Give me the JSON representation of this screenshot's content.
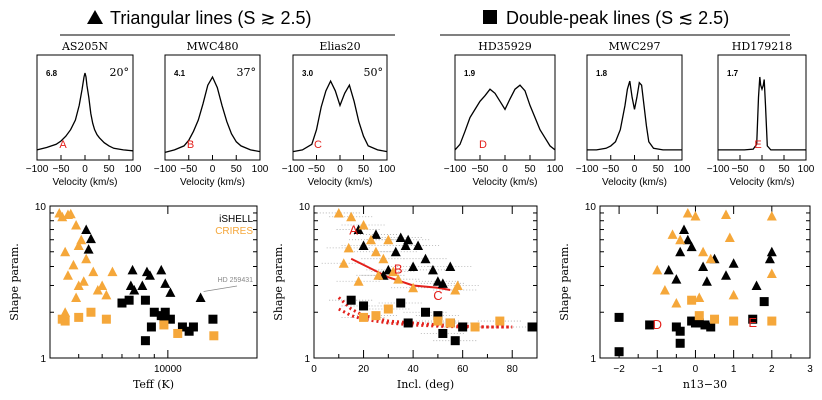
{
  "headers": {
    "left": "Triangular lines (S ≳ 2.5)",
    "right": "Double-peak lines (S ≲ 2.5)"
  },
  "colors": {
    "ishell": "#000000",
    "crires": "#f5a73a",
    "red": "#e3201b",
    "grey": "#888888"
  },
  "chart_data": [
    {
      "type": "line",
      "title": "AS205N",
      "shape_value": "6.8",
      "inclination_label": "20°",
      "letter": "A",
      "xlabel": "Velocity (km/s)",
      "xlim": [
        -100,
        100
      ],
      "xticks": [
        "−100",
        "−50",
        "0",
        "50",
        "100"
      ],
      "x": [
        -100,
        -80,
        -60,
        -50,
        -40,
        -30,
        -20,
        -12,
        -6,
        -2,
        0,
        2,
        4,
        8,
        12,
        16,
        20,
        25,
        30,
        40,
        50,
        60,
        80,
        100
      ],
      "y": [
        0.05,
        0.08,
        0.12,
        0.16,
        0.22,
        0.3,
        0.42,
        0.6,
        0.8,
        0.95,
        1.0,
        0.95,
        0.85,
        0.7,
        0.5,
        0.38,
        0.3,
        0.24,
        0.2,
        0.14,
        0.1,
        0.07,
        0.05,
        0.04
      ]
    },
    {
      "type": "line",
      "title": "MWC480",
      "shape_value": "4.1",
      "inclination_label": "37°",
      "letter": "B",
      "xlabel": "Velocity (km/s)",
      "xlim": [
        -100,
        100
      ],
      "xticks": [
        "−100",
        "−50",
        "0",
        "50",
        "100"
      ],
      "x": [
        -100,
        -80,
        -60,
        -50,
        -40,
        -30,
        -20,
        -10,
        0,
        10,
        20,
        30,
        40,
        50,
        60,
        80,
        100
      ],
      "y": [
        0.02,
        0.05,
        0.1,
        0.17,
        0.28,
        0.42,
        0.62,
        0.85,
        0.95,
        0.82,
        0.6,
        0.4,
        0.25,
        0.15,
        0.1,
        0.05,
        0.03
      ]
    },
    {
      "type": "line",
      "title": "Elias20",
      "shape_value": "3.0",
      "inclination_label": "50°",
      "letter": "C",
      "xlabel": "Velocity (km/s)",
      "xlim": [
        -100,
        100
      ],
      "xticks": [
        "−100",
        "−50",
        "0",
        "50",
        "100"
      ],
      "x": [
        -100,
        -80,
        -60,
        -50,
        -40,
        -30,
        -20,
        -10,
        0,
        10,
        20,
        30,
        40,
        50,
        60,
        80,
        100
      ],
      "y": [
        0.03,
        0.05,
        0.12,
        0.3,
        0.58,
        0.78,
        0.9,
        0.78,
        0.6,
        0.75,
        0.85,
        0.65,
        0.4,
        0.22,
        0.1,
        0.05,
        0.03
      ]
    },
    {
      "type": "line",
      "title": "HD35929",
      "shape_value": "1.9",
      "letter": "D",
      "xlabel": "Velocity (km/s)",
      "xlim": [
        -100,
        100
      ],
      "xticks": [
        "−100",
        "−50",
        "0",
        "50",
        "100"
      ],
      "x": [
        -100,
        -90,
        -80,
        -70,
        -60,
        -50,
        -40,
        -30,
        -20,
        -10,
        0,
        10,
        20,
        30,
        40,
        50,
        60,
        70,
        80,
        90,
        100
      ],
      "y": [
        0.05,
        0.12,
        0.28,
        0.45,
        0.55,
        0.65,
        0.72,
        0.8,
        0.75,
        0.65,
        0.55,
        0.68,
        0.8,
        0.85,
        0.78,
        0.6,
        0.45,
        0.3,
        0.2,
        0.1,
        0.05
      ]
    },
    {
      "type": "line",
      "title": "MWC297",
      "shape_value": "1.8",
      "letter": "",
      "xlabel": "Velocity (km/s)",
      "xlim": [
        -100,
        100
      ],
      "xticks": [
        "−100",
        "−50",
        "0",
        "50",
        "100"
      ],
      "x": [
        -100,
        -80,
        -60,
        -50,
        -40,
        -30,
        -20,
        -15,
        -10,
        -5,
        0,
        5,
        10,
        15,
        20,
        25,
        30,
        40,
        60,
        80,
        100
      ],
      "y": [
        0.05,
        0.05,
        0.07,
        0.1,
        0.15,
        0.3,
        0.6,
        0.8,
        0.9,
        0.7,
        0.55,
        0.7,
        0.88,
        0.85,
        0.6,
        0.35,
        0.15,
        0.07,
        0.05,
        0.05,
        0.05
      ]
    },
    {
      "type": "line",
      "title": "HD179218",
      "shape_value": "1.7",
      "letter": "E",
      "xlabel": "Velocity (km/s)",
      "xlim": [
        -100,
        100
      ],
      "xticks": [
        "−100",
        "−50",
        "0",
        "50",
        "100"
      ],
      "x": [
        -100,
        -80,
        -40,
        -20,
        -12,
        -8,
        -5,
        -3,
        0,
        3,
        5,
        8,
        12,
        20,
        40,
        80,
        100
      ],
      "y": [
        0.05,
        0.05,
        0.05,
        0.06,
        0.12,
        0.7,
        0.95,
        0.85,
        0.8,
        0.85,
        0.92,
        0.6,
        0.1,
        0.05,
        0.05,
        0.05,
        0.05
      ]
    },
    {
      "type": "scatter",
      "xlabel": "Teff (K)",
      "ylabel": "Shape param.",
      "xscale": "log",
      "yscale": "log",
      "xlim": [
        4000,
        20000
      ],
      "ylim": [
        1,
        10
      ],
      "xticks": [
        {
          "v": 10000,
          "label": "10000"
        }
      ],
      "yticks": [
        {
          "v": 1,
          "label": "1"
        },
        {
          "v": 10,
          "label": "10"
        }
      ],
      "legend": [
        {
          "label": "iSHELL",
          "color": "#000000"
        },
        {
          "label": "CRIRES",
          "color": "#f5a73a"
        }
      ],
      "annotation": "HD 259431",
      "series": [
        {
          "name": "iSHELL triangular",
          "marker": "triangle",
          "color": "#000000",
          "x": [
            5300,
            5400,
            5500,
            7600,
            7500,
            8200,
            8500,
            7700,
            9500,
            8700,
            9800,
            10200,
            12900
          ],
          "y": [
            7.0,
            5.2,
            6.1,
            3.8,
            3.0,
            3.0,
            3.7,
            2.8,
            3.8,
            3.5,
            3.1,
            2.7,
            2.5
          ]
        },
        {
          "name": "CRIRES triangular",
          "marker": "triangle",
          "color": "#f5a73a",
          "x": [
            4300,
            4400,
            4600,
            4700,
            4900,
            5000,
            5100,
            4500,
            4800,
            5300,
            5600,
            4600,
            5200,
            6500,
            6000,
            5800,
            5000,
            4900,
            4500,
            6200
          ],
          "y": [
            9.0,
            8.5,
            8.8,
            8.9,
            7.5,
            5.5,
            6.0,
            5.0,
            4.1,
            4.5,
            3.7,
            3.5,
            3.2,
            3.7,
            3.0,
            2.8,
            3.0,
            2.5,
            2.0,
            2.6
          ]
        },
        {
          "name": "iSHELL double-peak",
          "marker": "square",
          "color": "#000000",
          "x": [
            7000,
            7400,
            8400,
            9000,
            9500,
            9800,
            9700,
            10200,
            11200,
            12200,
            14200,
            8800,
            11800,
            8400
          ],
          "y": [
            2.3,
            2.4,
            2.4,
            2.0,
            1.9,
            2.0,
            1.8,
            1.8,
            1.6,
            1.6,
            1.8,
            1.6,
            1.5,
            1.3
          ]
        },
        {
          "name": "CRIRES double-peak",
          "marker": "square",
          "color": "#f5a73a",
          "x": [
            4400,
            4500,
            5000,
            5500,
            6200,
            9700,
            10800,
            14300
          ],
          "y": [
            1.8,
            1.75,
            1.85,
            2.0,
            1.8,
            1.65,
            1.45,
            1.4
          ]
        }
      ]
    },
    {
      "type": "scatter",
      "xlabel": "Incl. (deg)",
      "ylabel": "Shape param.",
      "yscale": "log",
      "xlim": [
        0,
        90
      ],
      "ylim": [
        1,
        10
      ],
      "xticks": [
        {
          "v": 0,
          "label": "0"
        },
        {
          "v": 20,
          "label": "20"
        },
        {
          "v": 40,
          "label": "40"
        },
        {
          "v": 60,
          "label": "60"
        },
        {
          "v": 80,
          "label": "80"
        }
      ],
      "yticks": [
        {
          "v": 1,
          "label": "1"
        },
        {
          "v": 10,
          "label": "10"
        }
      ],
      "labels": [
        {
          "text": "A",
          "x": 16,
          "y": 6.5
        },
        {
          "text": "B",
          "x": 34,
          "y": 3.6
        },
        {
          "text": "C",
          "x": 50,
          "y": 2.4
        }
      ],
      "model_solid": {
        "x": [
          15,
          20,
          30,
          40,
          50,
          55
        ],
        "y": [
          4.5,
          4.1,
          3.4,
          3.0,
          2.9,
          2.8
        ]
      },
      "model_dotted": [
        {
          "x": [
            10,
            15,
            20,
            30,
            40,
            50,
            60,
            70,
            80
          ],
          "y": [
            2.5,
            2.1,
            1.9,
            1.75,
            1.7,
            1.65,
            1.62,
            1.6,
            1.6
          ]
        },
        {
          "x": [
            10,
            15,
            20,
            30,
            40,
            50,
            60,
            70,
            80
          ],
          "y": [
            2.1,
            1.9,
            1.8,
            1.7,
            1.65,
            1.62,
            1.6,
            1.6,
            1.6
          ]
        }
      ],
      "series": [
        {
          "name": "iSHELL triangular",
          "marker": "triangle",
          "color": "#000000",
          "x": [
            18,
            25,
            33,
            35,
            38,
            40,
            42,
            45,
            48,
            50,
            52,
            55,
            20,
            28,
            30,
            37
          ],
          "y": [
            7.0,
            6.5,
            5.0,
            6.2,
            6.0,
            4.0,
            5.5,
            4.5,
            3.8,
            3.2,
            3.1,
            4.0,
            5.5,
            3.5,
            3.8,
            5.5
          ]
        },
        {
          "name": "CRIRES triangular",
          "marker": "triangle",
          "color": "#f5a73a",
          "x": [
            10,
            15,
            14,
            20,
            23,
            25,
            28,
            30,
            32,
            12,
            18,
            26,
            34,
            40,
            57,
            58
          ],
          "y": [
            9.0,
            8.5,
            5.3,
            7.5,
            6.0,
            5.0,
            4.5,
            6.0,
            3.7,
            4.2,
            3.2,
            3.5,
            3.3,
            2.9,
            2.8,
            3.0
          ]
        },
        {
          "name": "iSHELL double-peak",
          "marker": "square",
          "color": "#000000",
          "x": [
            15,
            20,
            35,
            45,
            50,
            55,
            60,
            88,
            38,
            57,
            52
          ],
          "y": [
            2.4,
            2.2,
            2.3,
            2.0,
            1.9,
            1.7,
            1.6,
            1.6,
            1.7,
            1.3,
            1.45
          ]
        },
        {
          "name": "CRIRES double-peak",
          "marker": "square",
          "color": "#f5a73a",
          "x": [
            20,
            25,
            30,
            50,
            55,
            65,
            75
          ],
          "y": [
            1.85,
            1.9,
            2.1,
            1.75,
            1.7,
            1.6,
            1.75
          ]
        }
      ]
    },
    {
      "type": "scatter",
      "xlabel": "n13−30",
      "ylabel": "Shape param.",
      "yscale": "log",
      "xlim": [
        -2.5,
        3
      ],
      "ylim": [
        1,
        10
      ],
      "xticks": [
        {
          "v": -2,
          "label": "−2"
        },
        {
          "v": -1,
          "label": "−1"
        },
        {
          "v": 0,
          "label": "0"
        },
        {
          "v": 1,
          "label": "1"
        },
        {
          "v": 2,
          "label": "2"
        },
        {
          "v": 3,
          "label": "3"
        }
      ],
      "yticks": [
        {
          "v": 1,
          "label": "1"
        },
        {
          "v": 10,
          "label": "10"
        }
      ],
      "labels": [
        {
          "text": "D",
          "x": -1.0,
          "y": 1.55
        },
        {
          "text": "E",
          "x": 1.5,
          "y": 1.6
        }
      ],
      "series": [
        {
          "name": "iSHELL triangular",
          "marker": "triangle",
          "color": "#000000",
          "x": [
            -0.3,
            -0.2,
            -0.1,
            -0.4,
            0.5,
            0.2,
            -0.7,
            -0.5,
            2.0,
            0.8,
            1.6,
            1.0,
            0.3,
            1.95
          ],
          "y": [
            7.0,
            6.0,
            5.4,
            5.0,
            4.5,
            4.0,
            3.8,
            3.3,
            5.0,
            3.5,
            3.0,
            4.2,
            3.2,
            4.5
          ]
        },
        {
          "name": "CRIRES triangular",
          "marker": "triangle",
          "color": "#f5a73a",
          "x": [
            -0.2,
            0.0,
            0.8,
            2.0,
            -0.6,
            -0.4,
            0.2,
            0.4,
            -1.0,
            -0.8,
            0.9,
            2.0,
            0.1,
            -0.5,
            1.0
          ],
          "y": [
            9.0,
            8.6,
            8.8,
            8.6,
            6.5,
            6.0,
            5.0,
            4.5,
            3.8,
            2.8,
            6.2,
            3.6,
            2.5,
            2.3,
            2.6
          ]
        },
        {
          "name": "iSHELL double-peak",
          "marker": "square",
          "color": "#000000",
          "x": [
            -2.0,
            -1.2,
            -0.5,
            -0.4,
            0.0,
            0.1,
            0.25,
            -0.1,
            1.8,
            1.5,
            0.4,
            -2.0,
            -0.4
          ],
          "y": [
            1.85,
            1.65,
            1.6,
            1.5,
            1.7,
            1.7,
            1.65,
            1.75,
            2.35,
            1.8,
            1.6,
            1.1,
            1.25
          ]
        },
        {
          "name": "CRIRES double-peak",
          "marker": "square",
          "color": "#f5a73a",
          "x": [
            -0.1,
            0.1,
            0.5,
            1.0,
            2.0
          ],
          "y": [
            2.4,
            1.9,
            1.8,
            1.75,
            1.75
          ]
        }
      ]
    }
  ]
}
